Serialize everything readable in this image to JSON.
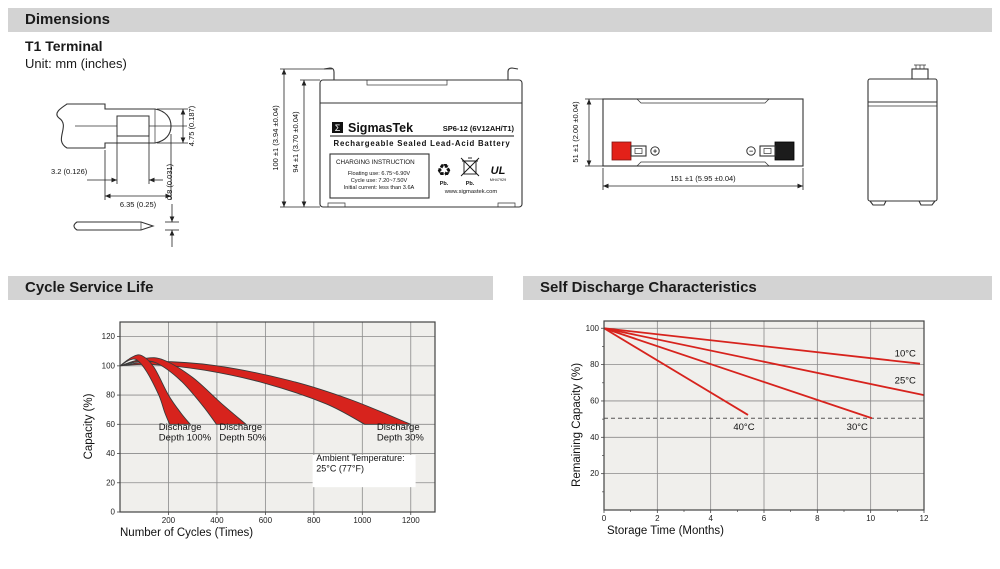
{
  "colors": {
    "red": "#d7231d",
    "header_bg": "#d3d3d3",
    "chart_bg": "#f0efec",
    "grid": "#8a8a8a",
    "ink": "#1a1a1a",
    "terminal_red": "#e32119",
    "terminal_black": "#1c1c1c"
  },
  "header": {
    "dimensions": "Dimensions",
    "cycle": "Cycle Service Life",
    "self_discharge": "Self Discharge Characteristics"
  },
  "dimensions_section": {
    "terminal_type": "T1 Terminal",
    "unit": "Unit: mm (inches)",
    "terminal_drawing": {
      "hole_offset": "3.2 (0.126)",
      "tab_width": "6.35 (0.25)",
      "tab_height": "4.75 (0.187)",
      "thickness": "0.8 (0.031)"
    },
    "front_view": {
      "brand_mark": "Σ",
      "brand": "SigmasTek",
      "model": "SP6-12 (6V12AH/T1)",
      "type_line": "Rechargeable Sealed Lead-Acid Battery",
      "charging_title": "CHARGING INSTRUCTION",
      "charging_line1": "Floating use: 6.75~6.90V",
      "charging_line2": "Cycle use: 7.20~7.50V",
      "charging_line3": "Initial current: less than 3.6A",
      "recycle_icon": "♻",
      "recycle_pb": "Pb.",
      "bin_pb": "Pb.",
      "ul_mark": "UL",
      "ul_code": "MH47929",
      "website": "www.sigmastek.com",
      "height_outer": "100 ±1 (3.94 ±0.04)",
      "height_inner": "94 ±1 (3.70 ±0.04)"
    },
    "top_view": {
      "height": "51 ±1 (2.00 ±0.04)",
      "width": "151 ±1 (5.95 ±0.04)",
      "plus_sign": "+",
      "minus_sign": "−"
    }
  },
  "chart_data": [
    {
      "id": "cycle",
      "type": "area",
      "title": "Cycle Service Life",
      "xlabel": "Number of Cycles (Times)",
      "ylabel": "Capacity (%)",
      "xlim": [
        0,
        1300
      ],
      "ylim": [
        0,
        130
      ],
      "xticks": [
        200,
        400,
        600,
        800,
        1000,
        1200
      ],
      "yticks": [
        0,
        20,
        40,
        60,
        80,
        100,
        120
      ],
      "grid": true,
      "legend_position": "none",
      "bands": [
        {
          "name": "Discharge Depth 100%",
          "upper": [
            [
              0,
              100
            ],
            [
              50,
              106
            ],
            [
              90,
              107
            ],
            [
              140,
              99
            ],
            [
              200,
              80
            ],
            [
              250,
              68
            ],
            [
              290,
              60
            ]
          ],
          "lower": [
            [
              0,
              100
            ],
            [
              40,
              104
            ],
            [
              70,
              104
            ],
            [
              110,
              96
            ],
            [
              160,
              80
            ],
            [
              185,
              68
            ],
            [
              205,
              60
            ]
          ]
        },
        {
          "name": "Discharge Depth 50%",
          "upper": [
            [
              0,
              100
            ],
            [
              100,
              105
            ],
            [
              180,
              104
            ],
            [
              300,
              92
            ],
            [
              420,
              74
            ],
            [
              520,
              60
            ]
          ],
          "lower": [
            [
              0,
              100
            ],
            [
              80,
              103
            ],
            [
              150,
              102
            ],
            [
              250,
              90
            ],
            [
              340,
              73
            ],
            [
              398,
              60
            ]
          ]
        },
        {
          "name": "Discharge Depth 30%",
          "upper": [
            [
              0,
              100
            ],
            [
              150,
              103
            ],
            [
              400,
              100
            ],
            [
              700,
              90
            ],
            [
              950,
              77
            ],
            [
              1200,
              60
            ]
          ],
          "lower": [
            [
              0,
              100
            ],
            [
              130,
              101
            ],
            [
              350,
              97
            ],
            [
              600,
              88
            ],
            [
              850,
              74
            ],
            [
              1010,
              60
            ]
          ]
        }
      ],
      "annotations": [
        {
          "lines": [
            "Discharge",
            "Depth 100%"
          ],
          "x": 160,
          "y": 56,
          "box": false
        },
        {
          "lines": [
            "Discharge",
            "Depth 50%"
          ],
          "x": 410,
          "y": 56,
          "box": false
        },
        {
          "lines": [
            "Discharge",
            "Depth 30%"
          ],
          "x": 1060,
          "y": 56,
          "box": false
        },
        {
          "lines": [
            "Ambient Temperature:",
            "25°C (77°F)"
          ],
          "x": 810,
          "y": 35,
          "box": true,
          "box_rect": [
            795,
            39,
            1220,
            17
          ]
        }
      ]
    },
    {
      "id": "self_discharge",
      "type": "line",
      "title": "Self Discharge Characteristics",
      "xlabel": "Storage Time (Months)",
      "ylabel": "Remaining Capacity (%)",
      "xlim": [
        0,
        12
      ],
      "ylim": [
        0,
        104
      ],
      "xticks": [
        0,
        2,
        4,
        6,
        8,
        10,
        12
      ],
      "yticks": [
        20,
        40,
        60,
        80,
        100
      ],
      "minor_y_step": 10,
      "minor_x_step": 1,
      "grid": true,
      "legend_position": "inline",
      "dashed_line_y": 50.5,
      "series": [
        {
          "name": "10°C",
          "points": [
            [
              0,
              100
            ],
            [
              11.85,
              80.5
            ]
          ],
          "label_x": 10.9,
          "label_y": 84.5
        },
        {
          "name": "25°C",
          "points": [
            [
              0,
              100
            ],
            [
              12,
              63.2
            ]
          ],
          "label_x": 10.9,
          "label_y": 69.5
        },
        {
          "name": "30°C",
          "points": [
            [
              0,
              100
            ],
            [
              10.05,
              50.5
            ]
          ],
          "label_x": 9.1,
          "label_y": 44
        },
        {
          "name": "40°C",
          "points": [
            [
              0,
              100
            ],
            [
              5.4,
              52.3
            ]
          ],
          "label_x": 4.85,
          "label_y": 44
        }
      ]
    }
  ]
}
